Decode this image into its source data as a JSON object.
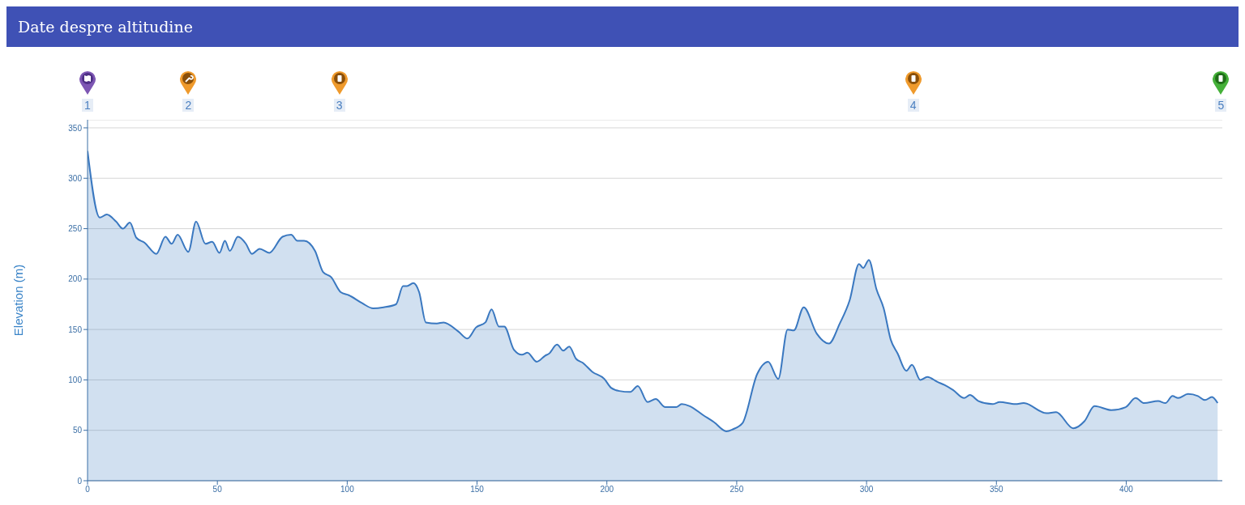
{
  "chart_data": {
    "type": "area",
    "title": "Date despre altitudine",
    "ylabel": "Elevation (m)",
    "x": [
      0,
      4.7,
      7.4,
      11,
      13.6,
      16.3,
      18.8,
      22,
      26.5,
      30,
      32.4,
      34.7,
      38.8,
      41.8,
      45.4,
      48,
      50.8,
      52.9,
      54.8,
      57.9,
      61,
      63.3,
      66.3,
      70,
      75.1,
      78.4,
      80.8,
      83.4,
      87.6,
      90.7,
      93.8,
      97.5,
      100.6,
      105.8,
      110,
      114,
      118.8,
      121.5,
      123,
      125.5,
      127.7,
      130.3,
      134.5,
      137.1,
      142.8,
      146.3,
      149.6,
      153.2,
      155.6,
      158.4,
      160.5,
      164.2,
      167.3,
      169.4,
      173,
      176.2,
      177.7,
      180.8,
      183.2,
      185.5,
      188.1,
      190.7,
      194.4,
      199,
      201.7,
      204.8,
      209,
      211.9,
      215.7,
      218.8,
      222.5,
      226.7,
      228.8,
      231.9,
      237.1,
      241.3,
      246,
      248.5,
      252.2,
      257.9,
      262.1,
      266,
      269.6,
      272,
      275.8,
      280.8,
      285.5,
      289.7,
      293.5,
      297.1,
      298.7,
      300.9,
      303.8,
      306.6,
      309.3,
      312,
      315.3,
      317.5,
      320.7,
      323.4,
      327.3,
      330,
      333.3,
      337.6,
      339.8,
      343.1,
      348.5,
      351.3,
      357.3,
      360.5,
      369.3,
      373,
      379.6,
      383.9,
      387.8,
      394.3,
      399.8,
      403.6,
      406.9,
      412.3,
      415.1,
      417.8,
      420,
      423.8,
      427.6,
      430.3,
      433,
      435.2
    ],
    "series": [
      {
        "color": "#3a78c0",
        "values": [
          327,
          261,
          264,
          257,
          250,
          256,
          241,
          236,
          225,
          242,
          235,
          244,
          227,
          257,
          235,
          237,
          226,
          238,
          228,
          242,
          235,
          225,
          230,
          226,
          242,
          244,
          238,
          238,
          228,
          207,
          202,
          187,
          184,
          176,
          171,
          172,
          175,
          193,
          193,
          196,
          187,
          157,
          156,
          157,
          148,
          141,
          152,
          157,
          170,
          153,
          153,
          130,
          125,
          127,
          118,
          124,
          126,
          135,
          129,
          133,
          121,
          117,
          108,
          101,
          92,
          89,
          88,
          94,
          78,
          81,
          73,
          73,
          76,
          74,
          65,
          58,
          49,
          51,
          57,
          106,
          118,
          101,
          150,
          149,
          172,
          146,
          136,
          156,
          179,
          215,
          211,
          219,
          190,
          171,
          140,
          126,
          109,
          115,
          100,
          103,
          98,
          95,
          90,
          82,
          85,
          79,
          76,
          78,
          76,
          77,
          67,
          68,
          52,
          59,
          74,
          70,
          73,
          82,
          77,
          79,
          77,
          84,
          82,
          86,
          84,
          80,
          83,
          77
        ]
      }
    ],
    "xlim": [
      0,
      437
    ],
    "ylim": [
      0,
      358
    ],
    "xticks": [
      0,
      50,
      100,
      150,
      200,
      250,
      300,
      350,
      400
    ],
    "yticks": [
      0,
      50,
      100,
      150,
      200,
      250,
      300,
      350
    ],
    "grid": "y",
    "marker": "none",
    "line_style": "solid",
    "annotations": [
      "1",
      "2",
      "3",
      "4",
      "5"
    ]
  }
}
